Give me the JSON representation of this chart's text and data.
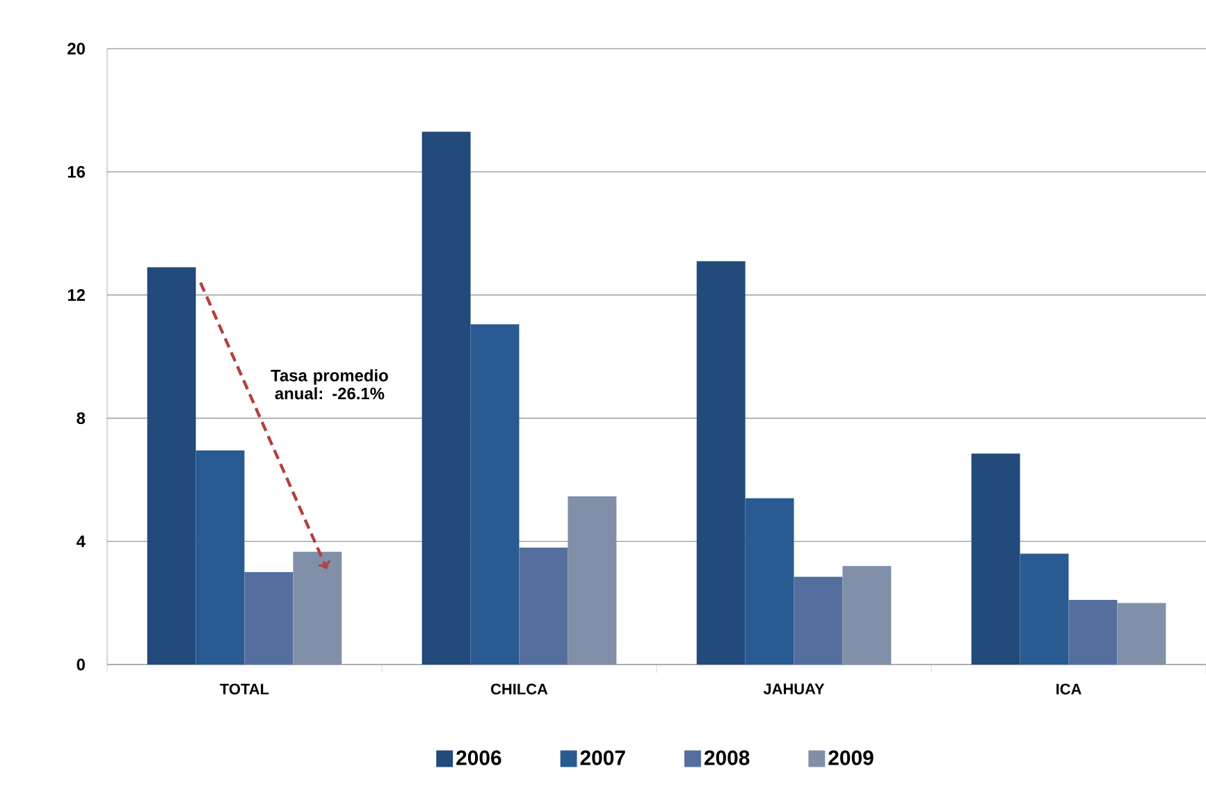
{
  "chart_data": {
    "type": "bar",
    "categories": [
      "TOTAL",
      "CHILCA",
      "JAHUAY",
      "ICA"
    ],
    "series": [
      {
        "name": "2006",
        "color": "#224a7a",
        "values": [
          12.9,
          17.3,
          13.1,
          6.85
        ]
      },
      {
        "name": "2007",
        "color": "#2a5a92",
        "values": [
          6.95,
          11.05,
          5.4,
          3.6
        ]
      },
      {
        "name": "2008",
        "color": "#546f9e",
        "values": [
          3.0,
          3.8,
          2.85,
          2.1
        ]
      },
      {
        "name": "2009",
        "color": "#8190a9",
        "values": [
          3.66,
          5.46,
          3.2,
          2.0
        ]
      }
    ],
    "ylim": [
      0,
      20
    ],
    "yticks": [
      0,
      4,
      8,
      12,
      16,
      20
    ],
    "grid": "y",
    "legend": "bottom",
    "annotations": [
      "Tasa promedio anual: -26.1%"
    ]
  }
}
